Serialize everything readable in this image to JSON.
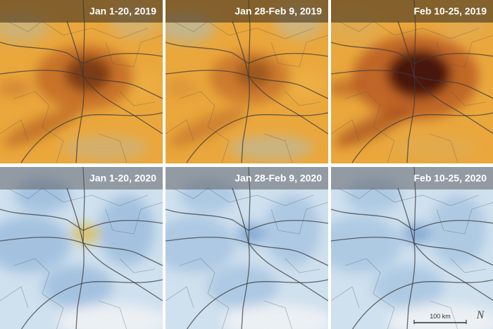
{
  "panels": [
    {
      "label": "Jan 1-20, 2019"
    },
    {
      "label": "Jan 28-Feb 9, 2019"
    },
    {
      "label": "Feb 10-25, 2019"
    },
    {
      "label": "Jan 1-20, 2020"
    },
    {
      "label": "Jan 28-Feb 9, 2020"
    },
    {
      "label": "Feb 10-25, 2020"
    }
  ],
  "scale_bar": "100 km",
  "north": "N"
}
